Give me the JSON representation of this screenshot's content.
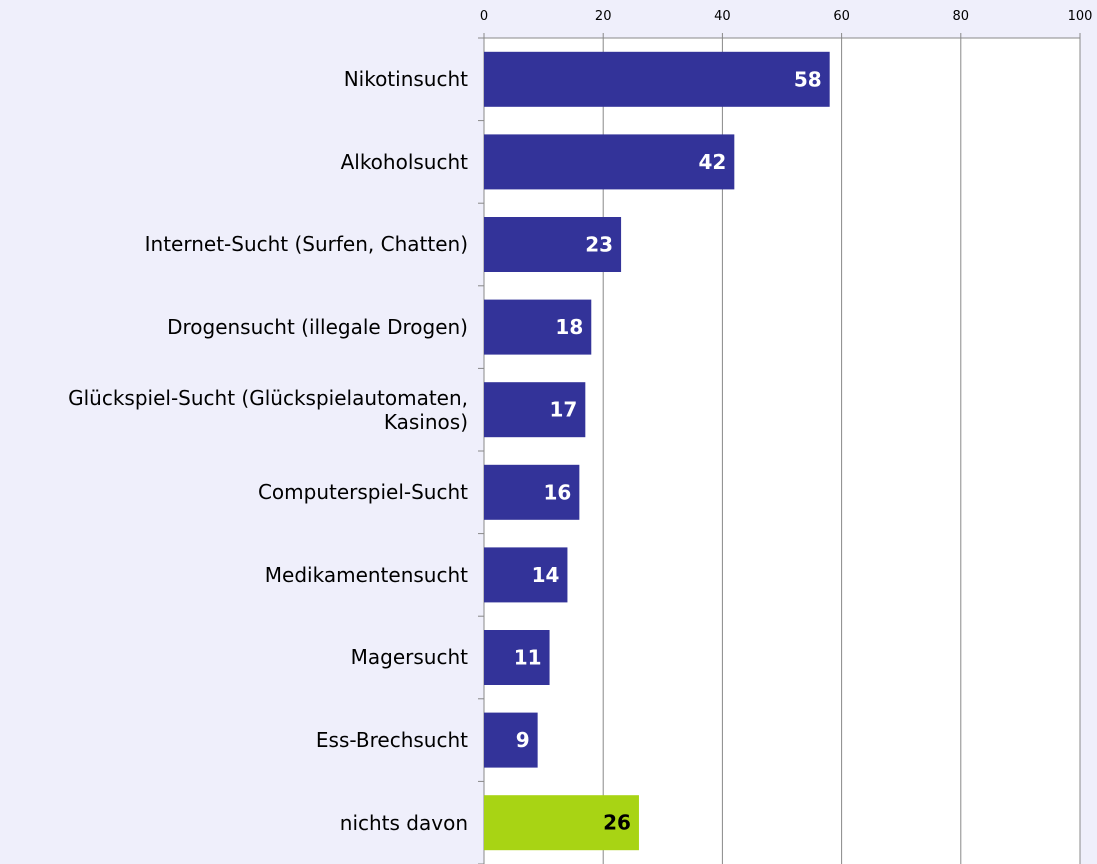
{
  "chart_data": {
    "type": "bar",
    "orientation": "horizontal",
    "categories": [
      "Nikotinsucht",
      "Alkoholsucht",
      "Internet-Sucht (Surfen, Chatten)",
      "Drogensucht (illegale Drogen)",
      "Glückspiel-Sucht (Glückspielautomaten, Kasinos)",
      "Computerspiel-Sucht",
      "Medikamentensucht",
      "Magersucht",
      "Ess-Brechsucht",
      "nichts davon"
    ],
    "values": [
      58,
      42,
      23,
      18,
      17,
      16,
      14,
      11,
      9,
      26
    ],
    "colors": [
      "#333399",
      "#333399",
      "#333399",
      "#333399",
      "#333399",
      "#333399",
      "#333399",
      "#333399",
      "#333399",
      "#a8d414"
    ],
    "label_colors": [
      "#ffffff",
      "#ffffff",
      "#ffffff",
      "#ffffff",
      "#ffffff",
      "#ffffff",
      "#ffffff",
      "#ffffff",
      "#ffffff",
      "#000000"
    ],
    "xlim": [
      0,
      100
    ],
    "xticks": [
      0,
      20,
      40,
      60,
      80,
      100
    ],
    "grid": true
  }
}
